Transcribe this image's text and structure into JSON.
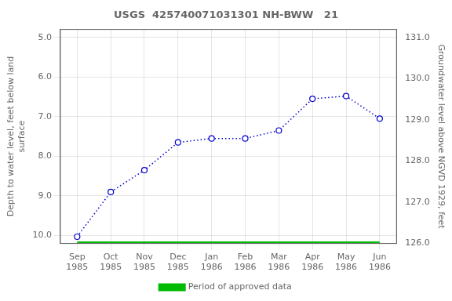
{
  "chart_data": {
    "type": "line",
    "title": "USGS  425740071031301 NH-BWW   21",
    "categories": [
      "Sep\n1985",
      "Oct\n1985",
      "Nov\n1985",
      "Dec\n1985",
      "Jan\n1986",
      "Feb\n1986",
      "Mar\n1986",
      "Apr\n1986",
      "May\n1986",
      "Jun\n1986"
    ],
    "series": [
      {
        "name": "Period of approved data",
        "color": "#00bb00",
        "line_style": "solid",
        "values": [
          10.2,
          10.2,
          10.2,
          10.2,
          10.2,
          10.2,
          10.2,
          10.2,
          10.2,
          10.2
        ]
      },
      {
        "color": "#0000cc",
        "marker": "circle",
        "line_style": "dotted",
        "values": [
          10.03,
          8.9,
          8.35,
          7.65,
          7.55,
          7.55,
          7.35,
          6.55,
          6.48,
          7.05
        ]
      }
    ],
    "ylabel": "Depth to water level, feet below land\nsurface",
    "y2label": "Groundwater level above NGVD 1929, feet",
    "ylim": [
      10.2,
      4.8
    ],
    "yticks": [
      {
        "value": 5.0,
        "label": "5.0"
      },
      {
        "value": 6.0,
        "label": "6.0"
      },
      {
        "value": 7.0,
        "label": "7.0"
      },
      {
        "value": 8.0,
        "label": "8.0"
      },
      {
        "value": 9.0,
        "label": "9.0"
      },
      {
        "value": 10.0,
        "label": "10.0"
      }
    ],
    "y2lim": [
      126.0,
      131.2
    ],
    "y2ticks": [
      {
        "value": 126.0,
        "label": "126.0"
      },
      {
        "value": 127.0,
        "label": "127.0"
      },
      {
        "value": 128.0,
        "label": "128.0"
      },
      {
        "value": 129.0,
        "label": "129.0"
      },
      {
        "value": 130.0,
        "label": "130.0"
      },
      {
        "value": 131.0,
        "label": "131.0"
      }
    ],
    "grid": true,
    "legend": "bottom"
  }
}
